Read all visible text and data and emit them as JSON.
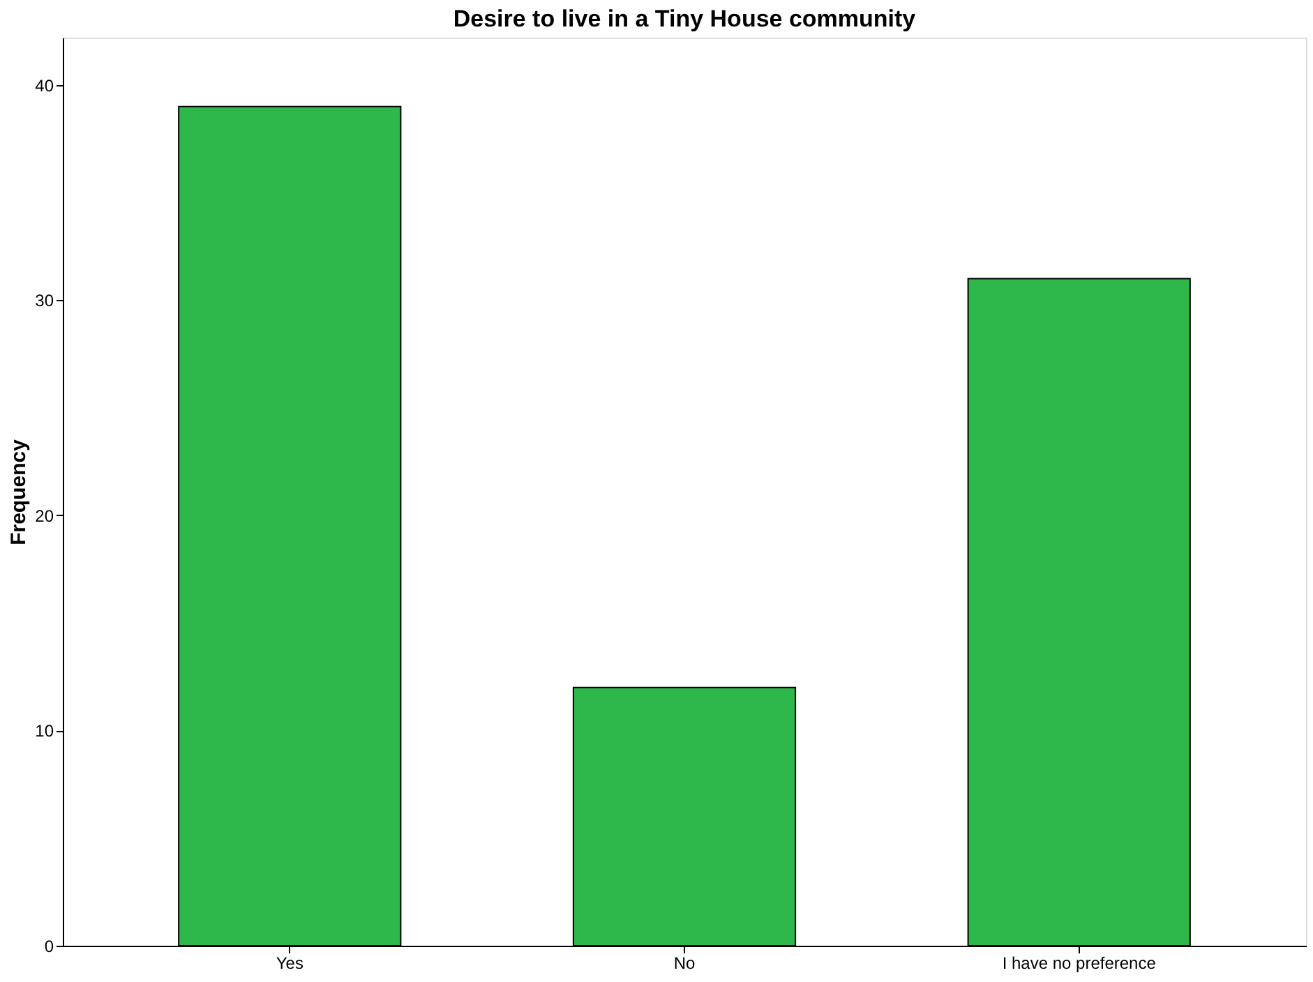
{
  "chart_data": {
    "type": "bar",
    "title": "Desire to live in a Tiny House community",
    "ylabel": "Frequency",
    "categories": [
      "Yes",
      "No",
      "I have no preference"
    ],
    "values": [
      39,
      12,
      31
    ],
    "color": "#2eb84b",
    "ylim": [
      0,
      42.2
    ],
    "yticks": [
      0,
      10,
      20,
      30,
      40
    ],
    "grid": false
  }
}
